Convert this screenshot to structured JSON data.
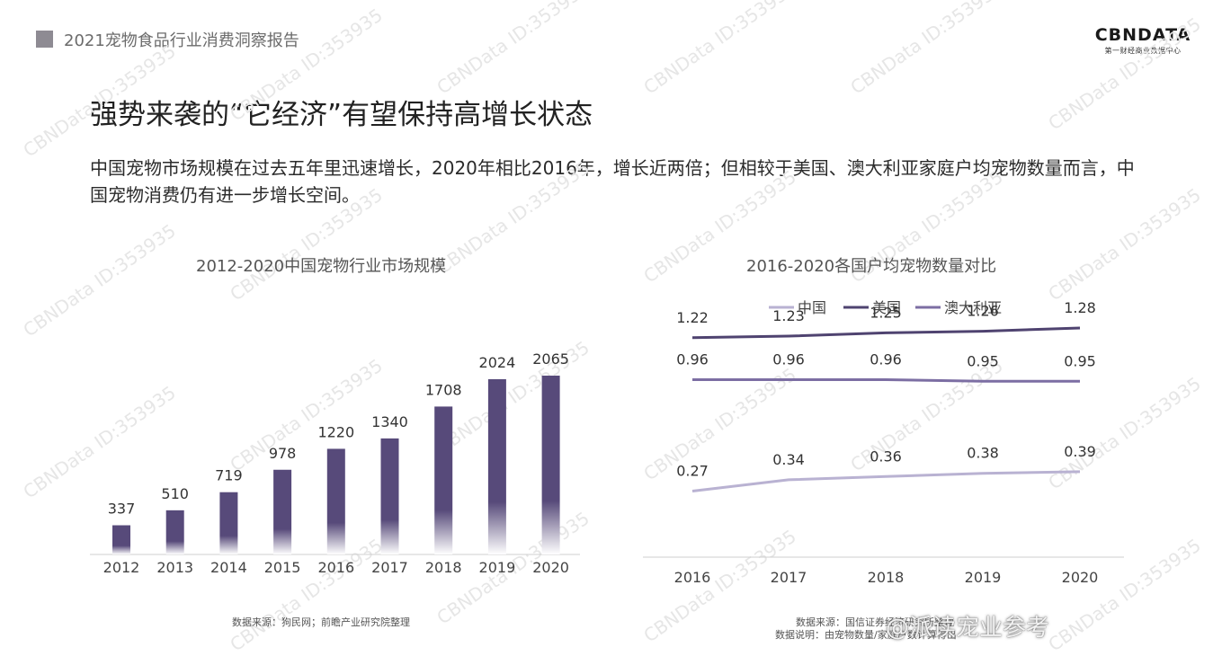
{
  "header": {
    "title": "2021宠物食品行业消费洞察报告"
  },
  "logo": {
    "text": "CBNDATA",
    "sub": "第一财经商业数据中心"
  },
  "headline": "强势来袭的“它经济”有望保持高增长状态",
  "paragraph": "中国宠物市场规模在过去五年里迅速增长，2020年相比2016年，增长近两倍；但相较于美国、澳大利亚家庭户均宠物数量而言，中国宠物消费仍有进一步增长空间。",
  "watermark": "CBNData ID:353935",
  "bottom_watermark": "@派读宠业参考",
  "source_left": "数据来源：狗民网；前瞻产业研究院整理",
  "source_right_1": "数据来源：国信证券经济研究所整理",
  "source_right_2": "数据说明：由宠物数量/家庭户数计算得出",
  "colors": {
    "bar": "#574a7a",
    "usa": "#4f4370",
    "australia": "#7c6ea3",
    "china": "#b9b2d2"
  },
  "chart_data": [
    {
      "type": "bar",
      "title": "2012-2020中国宠物行业市场规模",
      "categories": [
        "2012",
        "2013",
        "2014",
        "2015",
        "2016",
        "2017",
        "2018",
        "2019",
        "2020"
      ],
      "values": [
        337,
        510,
        719,
        978,
        1220,
        1340,
        1708,
        2024,
        2065
      ],
      "xlabel": "",
      "ylabel": "",
      "ylim": [
        0,
        2200
      ]
    },
    {
      "type": "line",
      "title": "2016-2020各国户均宠物数量对比",
      "x": [
        "2016",
        "2017",
        "2018",
        "2019",
        "2020"
      ],
      "series": [
        {
          "name": "中国",
          "values": [
            0.27,
            0.34,
            0.36,
            0.38,
            0.39
          ]
        },
        {
          "name": "美国",
          "values": [
            1.22,
            1.23,
            1.25,
            1.26,
            1.28
          ]
        },
        {
          "name": "澳大利亚",
          "values": [
            0.96,
            0.96,
            0.96,
            0.95,
            0.95
          ]
        }
      ],
      "legend": "top",
      "ylim": [
        0,
        1.4
      ]
    }
  ]
}
